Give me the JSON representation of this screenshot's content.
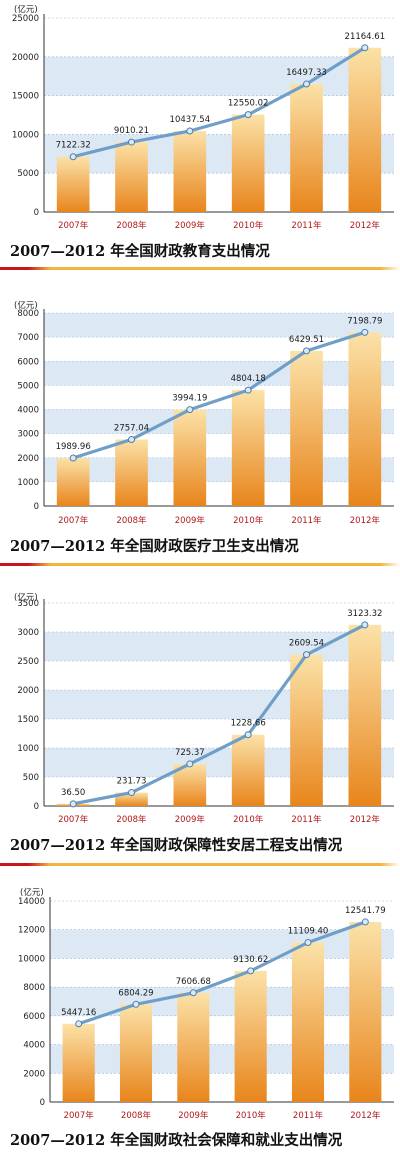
{
  "colors": {
    "bar_top": "#fbe2a8",
    "bar_bottom": "#e8851c",
    "line": "#6f9fc8",
    "marker": "#dbe9f6",
    "band": "#dce9f5",
    "category_text": "#b0181b",
    "separator_left": "#c8161d",
    "separator_right": "#f3b33d"
  },
  "chart_data": [
    {
      "type": "bar",
      "title": "2007—2012 年全国财政教育支出情况",
      "unit": "(亿元)",
      "categories": [
        "2007年",
        "2008年",
        "2009年",
        "2010年",
        "2011年",
        "2012年"
      ],
      "values": [
        7122.32,
        9010.21,
        10437.54,
        12550.02,
        16497.33,
        21164.61
      ],
      "value_labels": [
        "7122.32",
        "9010.21",
        "10437.54",
        "12550.02",
        "16497.33",
        "21164.61"
      ],
      "yticks": [
        0,
        5000,
        10000,
        15000,
        20000,
        25000
      ],
      "ylim": [
        0,
        25000
      ],
      "grid": true,
      "line_overlay": true
    },
    {
      "type": "bar",
      "title": "2007—2012 年全国财政医疗卫生支出情况",
      "unit": "(亿元)",
      "categories": [
        "2007年",
        "2008年",
        "2009年",
        "2010年",
        "2011年",
        "2012年"
      ],
      "values": [
        1989.96,
        2757.04,
        3994.19,
        4804.18,
        6429.51,
        7198.79
      ],
      "value_labels": [
        "1989.96",
        "2757.04",
        "3994.19",
        "4804.18",
        "6429.51",
        "7198.79"
      ],
      "yticks": [
        0,
        1000,
        2000,
        3000,
        4000,
        5000,
        6000,
        7000,
        8000
      ],
      "ylim": [
        0,
        8000
      ],
      "grid": true,
      "line_overlay": true
    },
    {
      "type": "bar",
      "title": "2007—2012 年全国财政保障性安居工程支出情况",
      "unit": "(亿元)",
      "categories": [
        "2007年",
        "2008年",
        "2009年",
        "2010年",
        "2011年",
        "2012年"
      ],
      "values": [
        36.5,
        231.73,
        725.37,
        1228.66,
        2609.54,
        3123.32
      ],
      "value_labels": [
        "36.50",
        "231.73",
        "725.37",
        "1228.66",
        "2609.54",
        "3123.32"
      ],
      "yticks": [
        0,
        500,
        1000,
        1500,
        2000,
        2500,
        3000,
        3500
      ],
      "ylim": [
        0,
        3500
      ],
      "grid": true,
      "line_overlay": true
    },
    {
      "type": "bar",
      "title": "2007—2012 年全国财政社会保障和就业支出情况",
      "unit": "(亿元)",
      "categories": [
        "2007年",
        "2008年",
        "2009年",
        "2010年",
        "2011年",
        "2012年"
      ],
      "values": [
        5447.16,
        6804.29,
        7606.68,
        9130.62,
        11109.4,
        12541.79
      ],
      "value_labels": [
        "5447.16",
        "6804.29",
        "7606.68",
        "9130.62",
        "11109.40",
        "12541.79"
      ],
      "yticks": [
        0,
        2000,
        4000,
        6000,
        8000,
        10000,
        12000,
        14000
      ],
      "ylim": [
        0,
        14000
      ],
      "grid": true,
      "line_overlay": true
    }
  ]
}
